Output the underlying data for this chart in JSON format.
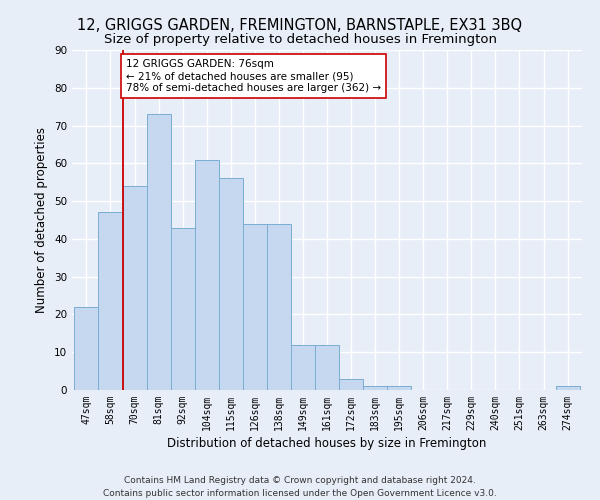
{
  "title": "12, GRIGGS GARDEN, FREMINGTON, BARNSTAPLE, EX31 3BQ",
  "subtitle": "Size of property relative to detached houses in Fremington",
  "xlabel": "Distribution of detached houses by size in Fremington",
  "ylabel": "Number of detached properties",
  "categories": [
    "47sqm",
    "58sqm",
    "70sqm",
    "81sqm",
    "92sqm",
    "104sqm",
    "115sqm",
    "126sqm",
    "138sqm",
    "149sqm",
    "161sqm",
    "172sqm",
    "183sqm",
    "195sqm",
    "206sqm",
    "217sqm",
    "229sqm",
    "240sqm",
    "251sqm",
    "263sqm",
    "274sqm"
  ],
  "values": [
    22,
    47,
    54,
    73,
    43,
    61,
    56,
    44,
    44,
    12,
    12,
    3,
    1,
    1,
    0,
    0,
    0,
    0,
    0,
    0,
    1
  ],
  "bar_color": "#c5d8f0",
  "bar_edge_color": "#7aadd4",
  "vline_x": 1.5,
  "vline_color": "#cc0000",
  "annotation_text": "12 GRIGGS GARDEN: 76sqm\n← 21% of detached houses are smaller (95)\n78% of semi-detached houses are larger (362) →",
  "annotation_box_color": "#ffffff",
  "annotation_box_edge": "#cc0000",
  "ylim": [
    0,
    90
  ],
  "yticks": [
    0,
    10,
    20,
    30,
    40,
    50,
    60,
    70,
    80,
    90
  ],
  "footer": "Contains HM Land Registry data © Crown copyright and database right 2024.\nContains public sector information licensed under the Open Government Licence v3.0.",
  "bg_color": "#e8eef8",
  "grid_color": "#ffffff",
  "title_fontsize": 10.5,
  "subtitle_fontsize": 9.5,
  "label_fontsize": 8.5,
  "tick_fontsize": 7,
  "footer_fontsize": 6.5
}
